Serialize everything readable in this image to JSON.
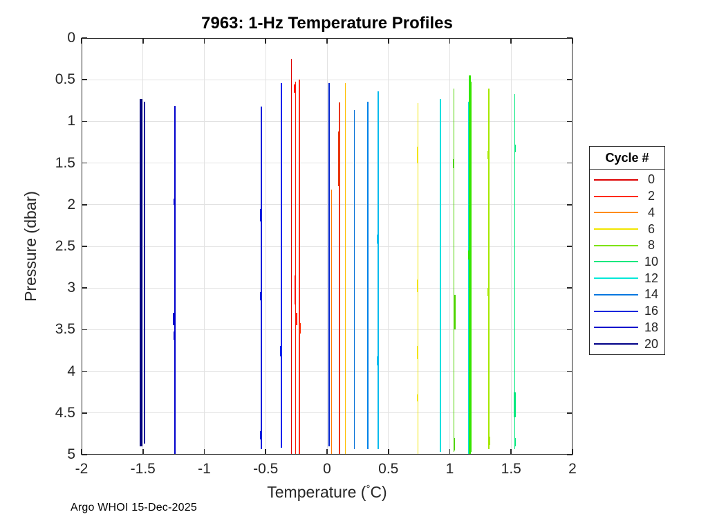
{
  "footer": {
    "text": "Argo WHOI 15-Dec-2025"
  },
  "chart_data": {
    "type": "line",
    "title": "7963: 1-Hz Temperature Profiles",
    "xlabel": "Temperature (°C)",
    "ylabel": "Pressure (dbar)",
    "xlim": [
      -2,
      2
    ],
    "ylim": [
      0,
      5
    ],
    "y_direction": "down",
    "grid": true,
    "xticks": {
      "values": [
        -2,
        -1.5,
        -1,
        -0.5,
        0,
        0.5,
        1,
        1.5,
        2
      ],
      "labels": [
        "-2",
        "-1.5",
        "-1",
        "-0.5",
        "0",
        "0.5",
        "1",
        "1.5",
        "2"
      ]
    },
    "yticks": {
      "values": [
        0,
        0.5,
        1,
        1.5,
        2,
        2.5,
        3,
        3.5,
        4,
        4.5,
        5
      ],
      "labels": [
        "0",
        "0.5",
        "1",
        "1.5",
        "2",
        "2.5",
        "3",
        "3.5",
        "4",
        "4.5",
        "5"
      ]
    },
    "legend": {
      "title": "Cycle #",
      "position": "right-outside",
      "entries": [
        {
          "label": "0",
          "color": "#dd0000"
        },
        {
          "label": "2",
          "color": "#ff2a00"
        },
        {
          "label": "4",
          "color": "#ff8c00"
        },
        {
          "label": "6",
          "color": "#f2e500"
        },
        {
          "label": "8",
          "color": "#7ee300"
        },
        {
          "label": "10",
          "color": "#00e87d"
        },
        {
          "label": "12",
          "color": "#00e8d8"
        },
        {
          "label": "14",
          "color": "#0077e0"
        },
        {
          "label": "16",
          "color": "#0026dd"
        },
        {
          "label": "18",
          "color": "#0000cc"
        },
        {
          "label": "20",
          "color": "#000087"
        }
      ]
    },
    "profiles": [
      {
        "temperature": -1.515,
        "pressure_top": 0.73,
        "pressure_bottom": 4.9,
        "color": "#000080",
        "width": 4.5
      },
      {
        "temperature": -1.487,
        "pressure_top": 0.76,
        "pressure_bottom": 4.87,
        "color": "#000099",
        "width": 1.6
      },
      {
        "temperature": -1.241,
        "pressure_top": 0.81,
        "pressure_bottom": 5.0,
        "color": "#0000cc",
        "width": 1.8,
        "wiggles": [
          {
            "temperature": -1.246,
            "pressure_top": 1.93,
            "pressure_bottom": 2.0,
            "width": 2.2
          },
          {
            "temperature": -1.247,
            "pressure_top": 3.3,
            "pressure_bottom": 3.45,
            "width": 2.6
          },
          {
            "temperature": -1.243,
            "pressure_top": 3.52,
            "pressure_bottom": 3.62,
            "width": 2.2
          }
        ]
      },
      {
        "temperature": -0.535,
        "pressure_top": 0.82,
        "pressure_bottom": 4.93,
        "color": "#001ddd",
        "width": 1.8,
        "wiggles": [
          {
            "temperature": -0.54,
            "pressure_top": 2.05,
            "pressure_bottom": 2.2,
            "width": 1.6
          },
          {
            "temperature": -0.538,
            "pressure_top": 2.62,
            "pressure_bottom": 2.72,
            "width": 1.6
          },
          {
            "temperature": -0.541,
            "pressure_top": 3.05,
            "pressure_bottom": 3.15,
            "width": 1.6
          },
          {
            "temperature": -0.538,
            "pressure_top": 3.32,
            "pressure_bottom": 3.42,
            "width": 1.6
          },
          {
            "temperature": -0.54,
            "pressure_top": 4.72,
            "pressure_bottom": 4.82,
            "width": 1.6
          }
        ]
      },
      {
        "temperature": -0.372,
        "pressure_top": 0.54,
        "pressure_bottom": 4.92,
        "color": "#0022ee",
        "width": 1.8,
        "wiggles": [
          {
            "temperature": -0.376,
            "pressure_top": 3.7,
            "pressure_bottom": 3.82,
            "width": 1.6
          },
          {
            "temperature": -0.374,
            "pressure_top": 4.78,
            "pressure_bottom": 4.9,
            "width": 1.6
          }
        ]
      },
      {
        "temperature": -0.29,
        "pressure_top": 0.25,
        "pressure_bottom": 5.0,
        "color": "#dd0000",
        "width": 1.8
      },
      {
        "temperature": -0.256,
        "pressure_top": 0.52,
        "pressure_bottom": 5.0,
        "color": "#ff1500",
        "width": 1.8,
        "wiggles": [
          {
            "temperature": -0.262,
            "pressure_top": 0.56,
            "pressure_bottom": 0.66,
            "width": 2.6
          },
          {
            "temperature": -0.259,
            "pressure_top": 2.85,
            "pressure_bottom": 3.2,
            "width": 2.6
          },
          {
            "temperature": -0.251,
            "pressure_top": 3.3,
            "pressure_bottom": 3.45,
            "width": 2.2
          }
        ]
      },
      {
        "temperature": -0.225,
        "pressure_top": 0.5,
        "pressure_bottom": 5.0,
        "color": "#ff2a00",
        "width": 1.8,
        "wiggles": [
          {
            "temperature": -0.219,
            "pressure_top": 3.42,
            "pressure_bottom": 3.55,
            "width": 2.0
          }
        ]
      },
      {
        "temperature": 0.015,
        "pressure_top": 0.54,
        "pressure_bottom": 4.9,
        "color": "#0022cc",
        "width": 1.8
      },
      {
        "temperature": 0.037,
        "pressure_top": 1.82,
        "pressure_bottom": 5.0,
        "color": "#ff7b00",
        "width": 1.8
      },
      {
        "temperature": 0.101,
        "pressure_top": 0.77,
        "pressure_bottom": 5.0,
        "color": "#e83400",
        "width": 1.8,
        "wiggles": [
          {
            "temperature": 0.092,
            "pressure_top": 1.12,
            "pressure_bottom": 1.78,
            "width": 1.6
          }
        ]
      },
      {
        "temperature": 0.149,
        "pressure_top": 0.54,
        "pressure_bottom": 5.0,
        "color": "#ffbf00",
        "width": 1.8
      },
      {
        "temperature": 0.222,
        "pressure_top": 0.86,
        "pressure_bottom": 4.93,
        "color": "#006fd6",
        "width": 1.8
      },
      {
        "temperature": 0.332,
        "pressure_top": 0.76,
        "pressure_bottom": 4.93,
        "color": "#0082e8",
        "width": 1.8
      },
      {
        "temperature": 0.415,
        "pressure_top": 0.64,
        "pressure_bottom": 4.93,
        "color": "#00bbee",
        "width": 1.8,
        "wiggles": [
          {
            "temperature": 0.412,
            "pressure_top": 2.36,
            "pressure_bottom": 2.47,
            "width": 3.0
          },
          {
            "temperature": 0.413,
            "pressure_top": 3.82,
            "pressure_bottom": 3.93,
            "width": 3.0
          }
        ]
      },
      {
        "temperature": 0.741,
        "pressure_top": 0.78,
        "pressure_bottom": 5.0,
        "color": "#f2e500",
        "width": 1.8,
        "wiggles": [
          {
            "temperature": 0.737,
            "pressure_top": 1.3,
            "pressure_bottom": 1.5,
            "width": 1.6
          },
          {
            "temperature": 0.738,
            "pressure_top": 2.9,
            "pressure_bottom": 3.05,
            "width": 1.6
          },
          {
            "temperature": 0.737,
            "pressure_top": 3.7,
            "pressure_bottom": 3.85,
            "width": 1.6
          },
          {
            "temperature": 0.739,
            "pressure_top": 4.28,
            "pressure_bottom": 4.36,
            "width": 1.6
          }
        ]
      },
      {
        "temperature": 0.924,
        "pressure_top": 0.73,
        "pressure_bottom": 4.97,
        "color": "#00dfdf",
        "width": 1.8
      },
      {
        "temperature": 1.034,
        "pressure_top": 0.61,
        "pressure_bottom": 4.97,
        "color": "#4fd400",
        "width": 1.8,
        "wiggles": [
          {
            "temperature": 1.028,
            "pressure_top": 1.45,
            "pressure_bottom": 1.56,
            "width": 1.6
          },
          {
            "temperature": 1.041,
            "pressure_top": 3.08,
            "pressure_bottom": 3.5,
            "width": 2.0
          },
          {
            "temperature": 1.039,
            "pressure_top": 4.8,
            "pressure_bottom": 4.95,
            "width": 1.8
          }
        ]
      },
      {
        "temperature": 1.152,
        "pressure_top": 0.76,
        "pressure_bottom": 5.0,
        "color": "#00dede",
        "width": 1.5
      },
      {
        "temperature": 1.162,
        "pressure_top": 0.45,
        "pressure_bottom": 5.0,
        "color": "#33e600",
        "width": 3.0,
        "wiggles": [
          {
            "temperature": 1.17,
            "pressure_top": 1.78,
            "pressure_bottom": 1.9,
            "width": 3.0
          },
          {
            "temperature": 1.155,
            "pressure_top": 2.55,
            "pressure_bottom": 2.66,
            "width": 3.0
          },
          {
            "temperature": 1.168,
            "pressure_top": 4.45,
            "pressure_bottom": 4.72,
            "width": 3.5
          }
        ]
      },
      {
        "temperature": 1.176,
        "pressure_top": 0.52,
        "pressure_bottom": 4.97,
        "color": "#44e000",
        "width": 1.5
      },
      {
        "temperature": 1.318,
        "pressure_top": 0.61,
        "pressure_bottom": 4.93,
        "color": "#a6e800",
        "width": 1.8,
        "wiggles": [
          {
            "temperature": 1.312,
            "pressure_top": 1.35,
            "pressure_bottom": 1.45,
            "width": 1.6
          },
          {
            "temperature": 1.313,
            "pressure_top": 3.0,
            "pressure_bottom": 3.1,
            "width": 1.6
          },
          {
            "temperature": 1.325,
            "pressure_top": 4.78,
            "pressure_bottom": 4.88,
            "width": 1.6
          }
        ]
      },
      {
        "temperature": 1.53,
        "pressure_top": 0.67,
        "pressure_bottom": 4.93,
        "color": "#00e87d",
        "width": 1.8,
        "wiggles": [
          {
            "temperature": 1.533,
            "pressure_top": 1.28,
            "pressure_bottom": 1.37,
            "width": 2.6
          },
          {
            "temperature": 1.528,
            "pressure_top": 4.25,
            "pressure_bottom": 4.55,
            "width": 2.6
          },
          {
            "temperature": 1.531,
            "pressure_top": 4.8,
            "pressure_bottom": 4.9,
            "width": 2.2
          }
        ]
      }
    ]
  }
}
